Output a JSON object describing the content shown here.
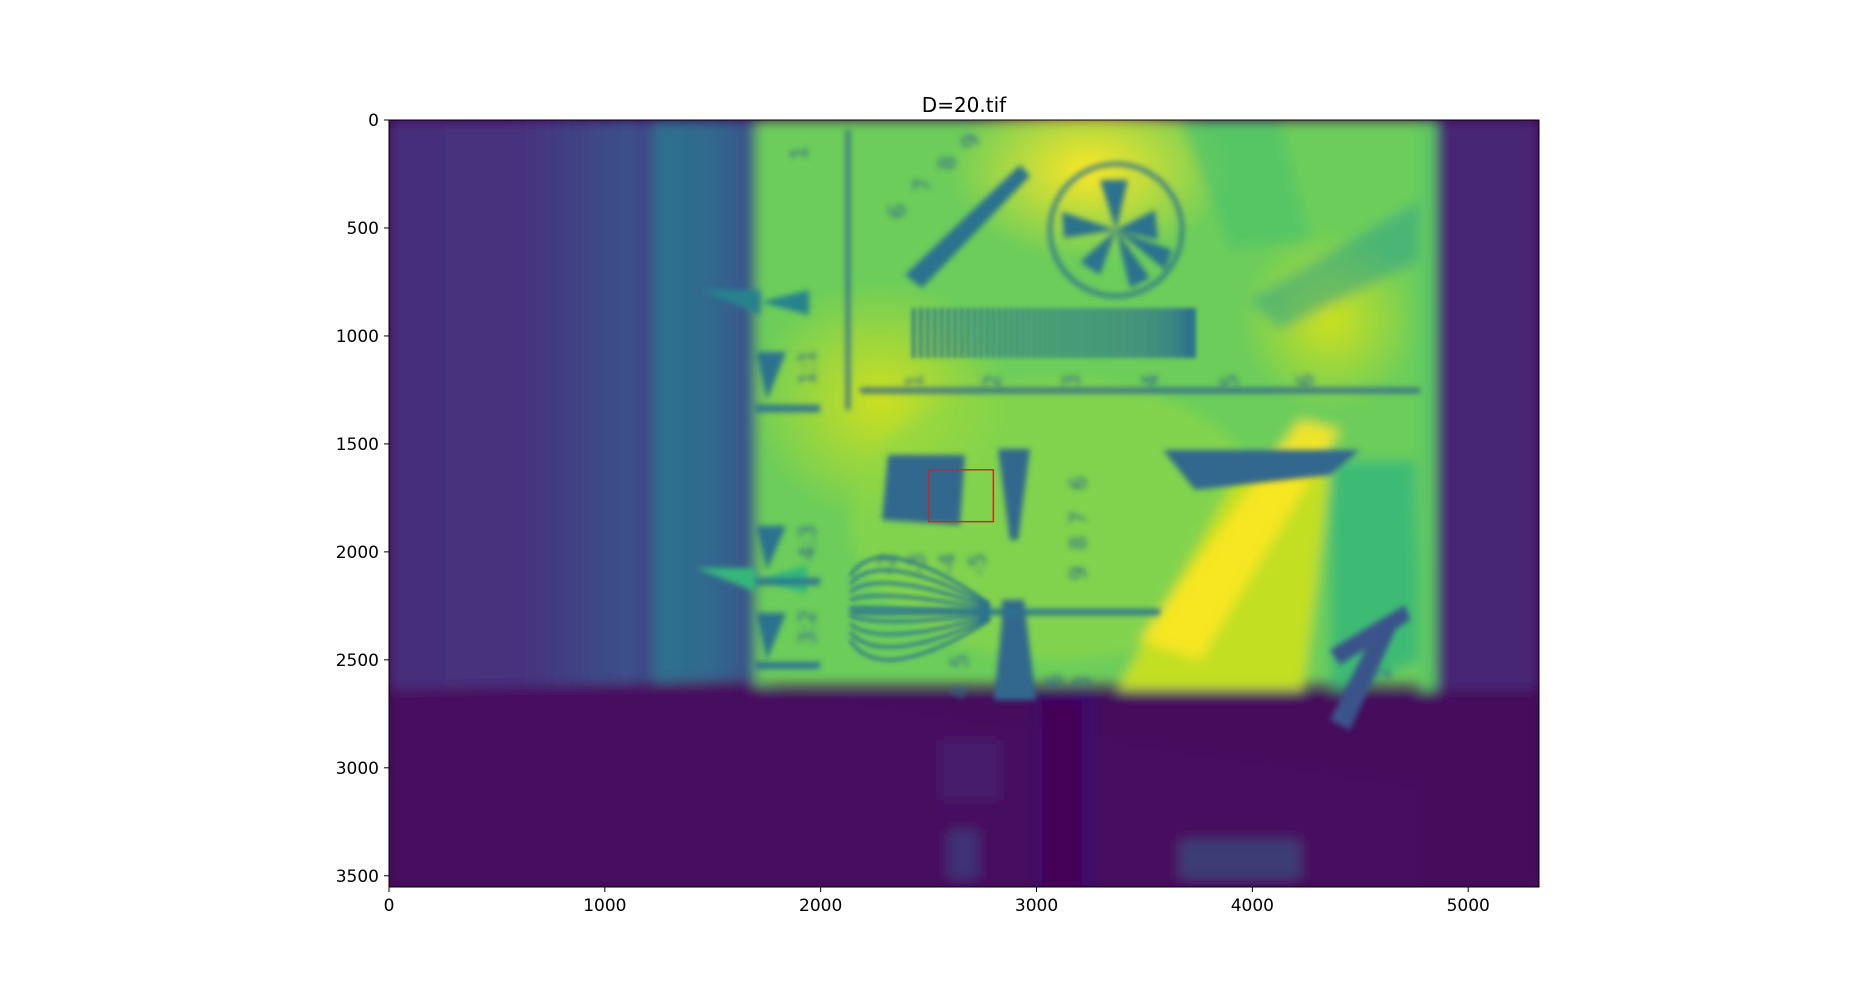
{
  "chart_data": {
    "type": "image",
    "title": "D=20.tif",
    "colormap": "viridis",
    "xlim": [
      0,
      5328
    ],
    "ylim": [
      3552,
      0
    ],
    "xticks": [
      0,
      1000,
      2000,
      3000,
      4000,
      5000
    ],
    "yticks": [
      0,
      500,
      1000,
      1500,
      2000,
      2500,
      3000,
      3500
    ],
    "grid": false,
    "roi_rectangle": {
      "x": 2500,
      "y": 1620,
      "width": 300,
      "height": 240,
      "color": "#e31a1c"
    },
    "image_text": [
      "1",
      "1:1",
      "4:3",
      "3:2",
      "1",
      "2",
      "3",
      "4",
      "5",
      "6",
      "6",
      "7",
      "8",
      "9",
      "-2",
      "-3",
      "-4",
      "-5",
      "6",
      "7",
      "8",
      "9",
      "4",
      "5",
      "6",
      "3",
      "2"
    ]
  }
}
